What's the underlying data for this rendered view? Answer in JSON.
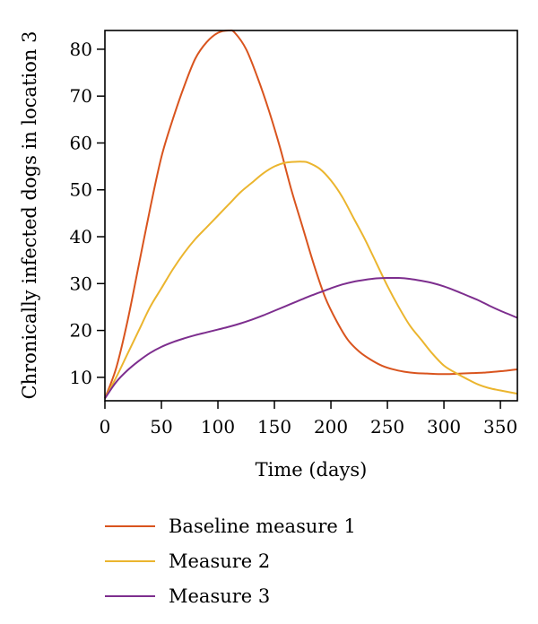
{
  "chart_data": {
    "type": "line",
    "title": "",
    "xlabel": "Time (days)",
    "ylabel": "Chronically infected dogs in location 3",
    "xlim": [
      0,
      365
    ],
    "ylim": [
      5,
      84
    ],
    "xticks": [
      0,
      50,
      100,
      150,
      200,
      250,
      300,
      350
    ],
    "yticks": [
      10,
      20,
      30,
      40,
      50,
      60,
      70,
      80
    ],
    "grid": false,
    "legend_position": "bottom",
    "series": [
      {
        "name": "Baseline measure 1",
        "color": "#d9541e",
        "x": [
          0,
          10,
          20,
          30,
          40,
          50,
          60,
          70,
          80,
          90,
          100,
          110,
          115,
          125,
          135,
          145,
          155,
          165,
          175,
          185,
          195,
          205,
          215,
          225,
          235,
          245,
          255,
          265,
          275,
          285,
          295,
          305,
          315,
          325,
          335,
          345,
          355,
          365
        ],
        "y": [
          5.5,
          12,
          22,
          34,
          46,
          57,
          65,
          72,
          78,
          81.5,
          83.5,
          84,
          83.5,
          80,
          74,
          67,
          59,
          50,
          42,
          34,
          27,
          22,
          18,
          15.5,
          13.8,
          12.5,
          11.7,
          11.2,
          10.9,
          10.8,
          10.7,
          10.7,
          10.8,
          10.9,
          11,
          11.2,
          11.4,
          11.7
        ]
      },
      {
        "name": "Measure 2",
        "color": "#ebb52e",
        "x": [
          0,
          10,
          20,
          30,
          40,
          50,
          60,
          70,
          80,
          90,
          100,
          110,
          120,
          130,
          140,
          150,
          160,
          170,
          175,
          180,
          190,
          200,
          210,
          220,
          230,
          240,
          250,
          260,
          270,
          280,
          290,
          300,
          310,
          320,
          330,
          340,
          350,
          365
        ],
        "y": [
          5.5,
          10,
          15,
          20,
          25,
          29,
          33,
          36.5,
          39.5,
          42,
          44.5,
          47,
          49.5,
          51.5,
          53.5,
          55,
          55.8,
          56,
          56,
          55.8,
          54.5,
          52,
          48.5,
          44,
          39.5,
          34.5,
          29.5,
          25,
          21,
          18,
          15,
          12.5,
          11,
          9.7,
          8.5,
          7.7,
          7.2,
          6.5
        ]
      },
      {
        "name": "Measure 3",
        "color": "#7d2e8e",
        "x": [
          0,
          10,
          20,
          30,
          40,
          50,
          60,
          70,
          80,
          90,
          100,
          110,
          120,
          130,
          140,
          150,
          160,
          170,
          180,
          190,
          200,
          210,
          220,
          230,
          240,
          250,
          260,
          270,
          280,
          290,
          300,
          310,
          320,
          330,
          340,
          350,
          365
        ],
        "y": [
          5.5,
          9,
          11.5,
          13.5,
          15.2,
          16.5,
          17.5,
          18.3,
          19,
          19.6,
          20.2,
          20.8,
          21.5,
          22.3,
          23.2,
          24.2,
          25.2,
          26.2,
          27.2,
          28.1,
          29,
          29.8,
          30.4,
          30.8,
          31.1,
          31.2,
          31.2,
          31,
          30.6,
          30.1,
          29.4,
          28.5,
          27.5,
          26.5,
          25.3,
          24.2,
          22.7
        ]
      }
    ]
  }
}
